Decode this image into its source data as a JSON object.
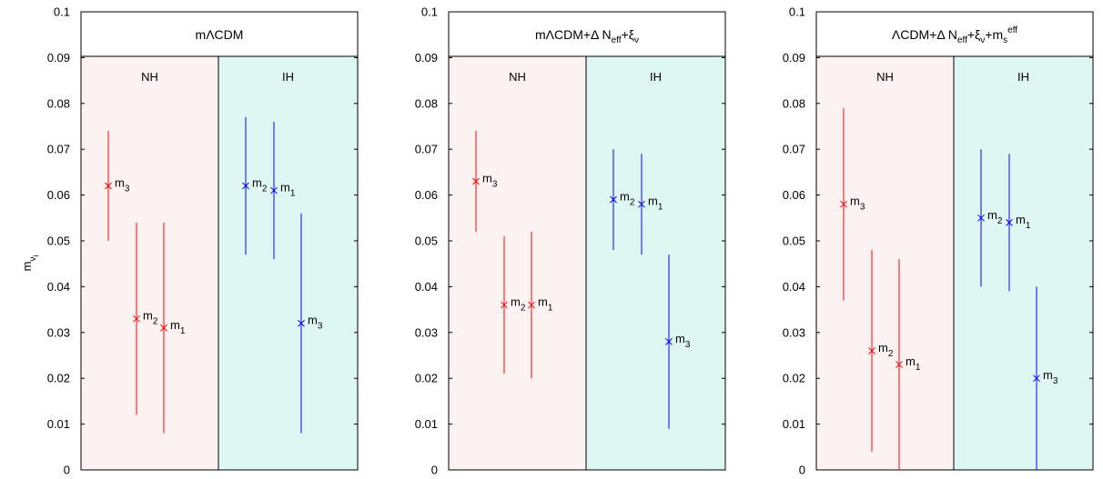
{
  "chart_data": {
    "type": "scatter",
    "ylabel": "m",
    "ylabel_sub": "ν",
    "ylabel_subsub": "i",
    "ylim": [
      0,
      0.1
    ],
    "yticks": [
      "0",
      "0.01",
      "0.02",
      "0.03",
      "0.04",
      "0.05",
      "0.06",
      "0.07",
      "0.08",
      "0.09",
      "0.1"
    ],
    "colors": {
      "NH": "#ff0000",
      "IH": "#0000ff",
      "NH_bg": "#fdf2f2",
      "IH_bg": "#dff7f2"
    },
    "panels": [
      {
        "title": "mΛCDM",
        "title_parts": [
          {
            "t": "mΛCDM"
          }
        ],
        "regions": [
          {
            "name": "NH",
            "hierarchy": "NH"
          },
          {
            "name": "IH",
            "hierarchy": "IH"
          }
        ],
        "points": [
          {
            "hierarchy": "NH",
            "label": "m",
            "label_sub": "3",
            "x": 1,
            "y": 0.062,
            "low": 0.05,
            "high": 0.074
          },
          {
            "hierarchy": "NH",
            "label": "m",
            "label_sub": "2",
            "x": 2,
            "y": 0.033,
            "low": 0.012,
            "high": 0.054
          },
          {
            "hierarchy": "NH",
            "label": "m",
            "label_sub": "1",
            "x": 3,
            "y": 0.031,
            "low": 0.008,
            "high": 0.054
          },
          {
            "hierarchy": "IH",
            "label": "m",
            "label_sub": "2",
            "x": 1,
            "y": 0.062,
            "low": 0.047,
            "high": 0.077
          },
          {
            "hierarchy": "IH",
            "label": "m",
            "label_sub": "1",
            "x": 2,
            "y": 0.061,
            "low": 0.046,
            "high": 0.076
          },
          {
            "hierarchy": "IH",
            "label": "m",
            "label_sub": "3",
            "x": 3,
            "y": 0.032,
            "low": 0.008,
            "high": 0.056
          }
        ]
      },
      {
        "title": "mΛCDM+Δ Neff+ξν",
        "title_parts": [
          {
            "t": "mΛCDM+Δ N"
          },
          {
            "t": "eff",
            "sub": true
          },
          {
            "t": "+ξ"
          },
          {
            "t": "ν",
            "sub": true
          }
        ],
        "regions": [
          {
            "name": "NH",
            "hierarchy": "NH"
          },
          {
            "name": "IH",
            "hierarchy": "IH"
          }
        ],
        "points": [
          {
            "hierarchy": "NH",
            "label": "m",
            "label_sub": "3",
            "x": 1,
            "y": 0.063,
            "low": 0.052,
            "high": 0.074
          },
          {
            "hierarchy": "NH",
            "label": "m",
            "label_sub": "2",
            "x": 2,
            "y": 0.036,
            "low": 0.021,
            "high": 0.051
          },
          {
            "hierarchy": "NH",
            "label": "m",
            "label_sub": "1",
            "x": 3,
            "y": 0.036,
            "low": 0.02,
            "high": 0.052
          },
          {
            "hierarchy": "IH",
            "label": "m",
            "label_sub": "2",
            "x": 1,
            "y": 0.059,
            "low": 0.048,
            "high": 0.07
          },
          {
            "hierarchy": "IH",
            "label": "m",
            "label_sub": "1",
            "x": 2,
            "y": 0.058,
            "low": 0.047,
            "high": 0.069
          },
          {
            "hierarchy": "IH",
            "label": "m",
            "label_sub": "3",
            "x": 3,
            "y": 0.028,
            "low": 0.009,
            "high": 0.047
          }
        ]
      },
      {
        "title": "ΛCDM+Δ Neff+ξν+ms eff",
        "title_parts": [
          {
            "t": "ΛCDM+Δ N"
          },
          {
            "t": "eff",
            "sub": true
          },
          {
            "t": "+ξ"
          },
          {
            "t": "ν",
            "sub": true
          },
          {
            "t": "+m"
          },
          {
            "t": "s",
            "sub": true
          },
          {
            "t": "eff",
            "sup": true
          }
        ],
        "regions": [
          {
            "name": "NH",
            "hierarchy": "NH"
          },
          {
            "name": "IH",
            "hierarchy": "IH"
          }
        ],
        "points": [
          {
            "hierarchy": "NH",
            "label": "m",
            "label_sub": "3",
            "x": 1,
            "y": 0.058,
            "low": 0.037,
            "high": 0.079
          },
          {
            "hierarchy": "NH",
            "label": "m",
            "label_sub": "2",
            "x": 2,
            "y": 0.026,
            "low": 0.004,
            "high": 0.048
          },
          {
            "hierarchy": "NH",
            "label": "m",
            "label_sub": "1",
            "x": 3,
            "y": 0.023,
            "low": 0.0,
            "high": 0.046
          },
          {
            "hierarchy": "IH",
            "label": "m",
            "label_sub": "2",
            "x": 1,
            "y": 0.055,
            "low": 0.04,
            "high": 0.07
          },
          {
            "hierarchy": "IH",
            "label": "m",
            "label_sub": "1",
            "x": 2,
            "y": 0.054,
            "low": 0.039,
            "high": 0.069
          },
          {
            "hierarchy": "IH",
            "label": "m",
            "label_sub": "3",
            "x": 3,
            "y": 0.02,
            "low": 0.0,
            "high": 0.04
          }
        ]
      }
    ]
  }
}
